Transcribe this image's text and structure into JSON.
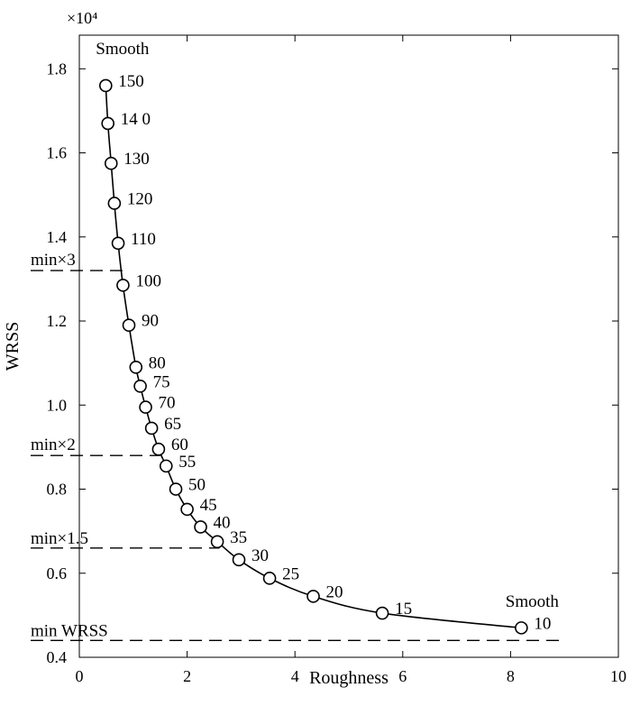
{
  "chart_data": {
    "type": "line",
    "title": "",
    "xlabel": "Roughness",
    "ylabel": "WRSS",
    "y_multiplier_label": "×10⁴",
    "xlim": [
      0,
      10
    ],
    "ylim": [
      0.4,
      1.88
    ],
    "x_ticks": [
      0,
      2,
      4,
      6,
      8,
      10
    ],
    "y_ticks": [
      0.4,
      0.6,
      0.8,
      1.0,
      1.2,
      1.4,
      1.6,
      1.8
    ],
    "x_tick_labels": [
      "0",
      "2",
      "4",
      "6",
      "8",
      "10"
    ],
    "y_tick_labels": [
      "0.4",
      "0.6",
      "0.8",
      "1.0",
      "1.2",
      "1.4",
      "1.6",
      "1.8"
    ],
    "grid": false,
    "series": [
      {
        "points": [
          {
            "label": "150",
            "x": 0.49,
            "y": 1.76
          },
          {
            "label": "14 0",
            "x": 0.53,
            "y": 1.67
          },
          {
            "label": "130",
            "x": 0.59,
            "y": 1.575
          },
          {
            "label": "120",
            "x": 0.65,
            "y": 1.48
          },
          {
            "label": "110",
            "x": 0.72,
            "y": 1.385
          },
          {
            "label": "100",
            "x": 0.81,
            "y": 1.285
          },
          {
            "label": "90",
            "x": 0.92,
            "y": 1.19
          },
          {
            "label": "80",
            "x": 1.05,
            "y": 1.09
          },
          {
            "label": "75",
            "x": 1.13,
            "y": 1.045
          },
          {
            "label": "70",
            "x": 1.23,
            "y": 0.995
          },
          {
            "label": "65",
            "x": 1.34,
            "y": 0.945
          },
          {
            "label": "60",
            "x": 1.47,
            "y": 0.895
          },
          {
            "label": "55",
            "x": 1.61,
            "y": 0.855
          },
          {
            "label": "50",
            "x": 1.79,
            "y": 0.8
          },
          {
            "label": "45",
            "x": 2.0,
            "y": 0.752
          },
          {
            "label": "40",
            "x": 2.25,
            "y": 0.71
          },
          {
            "label": "35",
            "x": 2.56,
            "y": 0.675
          },
          {
            "label": "30",
            "x": 2.96,
            "y": 0.632
          },
          {
            "label": "25",
            "x": 3.53,
            "y": 0.588
          },
          {
            "label": "20",
            "x": 4.34,
            "y": 0.545
          },
          {
            "label": "15",
            "x": 5.62,
            "y": 0.505
          },
          {
            "label": "10",
            "x": 8.2,
            "y": 0.47
          }
        ]
      }
    ],
    "reference_lines": [
      {
        "label": "min×3",
        "y": 1.32,
        "x_end": 0.8
      },
      {
        "label": "min×2",
        "y": 0.88,
        "x_end": 1.5
      },
      {
        "label": "min×1.5",
        "y": 0.66,
        "x_end": 2.6
      },
      {
        "label": "min WRSS",
        "y": 0.44,
        "x_end": 9.0
      }
    ],
    "annotations": [
      {
        "text": "Smooth",
        "x": 0.8,
        "y": 1.835
      },
      {
        "text": "Smooth",
        "x": 8.4,
        "y": 0.52
      }
    ]
  }
}
